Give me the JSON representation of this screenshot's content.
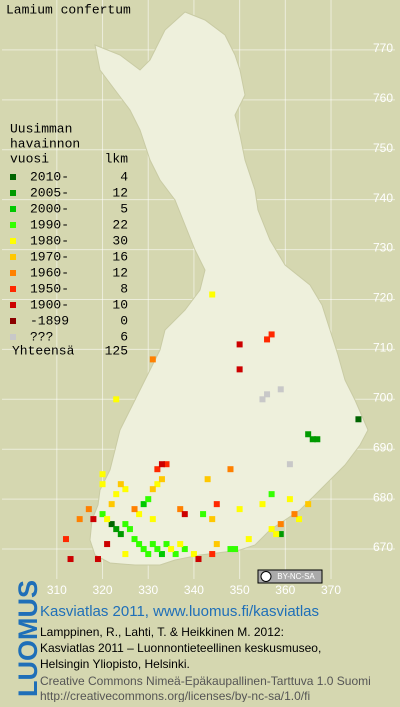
{
  "chart_data": {
    "type": "map",
    "title": "Lamium confertum",
    "xlim": [
      298,
      384
    ],
    "ylim": [
      664,
      780
    ],
    "xticks": [
      310,
      320,
      330,
      340,
      350,
      360,
      370
    ],
    "yticks": [
      670,
      680,
      690,
      700,
      710,
      720,
      730,
      740,
      750,
      760,
      770
    ],
    "grid": true,
    "legend": {
      "title_lines": [
        "Uusimman",
        "havainnon",
        "vuosi"
      ],
      "count_header": "lkm",
      "total_label": "Yhteensä",
      "total": 125
    },
    "series": [
      {
        "name": "2010-",
        "count": 4,
        "color": "#006400",
        "x": [
          376,
          322
        ],
        "y": [
          696,
          675
        ]
      },
      {
        "name": "2005-",
        "count": 12,
        "color": "#009a00",
        "x": [
          365,
          366,
          367,
          323,
          324,
          359
        ],
        "y": [
          693,
          692,
          692,
          674,
          673,
          673
        ]
      },
      {
        "name": "2000-",
        "count": 5,
        "color": "#00c800",
        "x": [
          333,
          329
        ],
        "y": [
          669,
          679
        ]
      },
      {
        "name": "1990-",
        "count": 22,
        "color": "#33ff00",
        "x": [
          327,
          328,
          329,
          330,
          331,
          332,
          334,
          336,
          338,
          348,
          349,
          320,
          325,
          326,
          330,
          342,
          357
        ],
        "y": [
          672,
          671,
          670,
          669,
          671,
          670,
          671,
          669,
          670,
          670,
          670,
          677,
          675,
          674,
          680,
          677,
          681
        ]
      },
      {
        "name": "1980-",
        "count": 30,
        "color": "#ffff00",
        "x": [
          325,
          335,
          337,
          340,
          352,
          357,
          358,
          363,
          361,
          321,
          323,
          325,
          328,
          332,
          331,
          320,
          320,
          344,
          323,
          350,
          355
        ],
        "y": [
          669,
          670,
          671,
          669,
          672,
          674,
          673,
          676,
          680,
          676,
          681,
          682,
          677,
          683,
          676,
          683,
          685,
          721,
          700,
          678,
          679
        ]
      },
      {
        "name": "1970-",
        "count": 16,
        "color": "#ffc800",
        "x": [
          345,
          365,
          322,
          324,
          331,
          333,
          344,
          343
        ],
        "y": [
          671,
          679,
          679,
          683,
          682,
          684,
          676,
          684
        ]
      },
      {
        "name": "1960-",
        "count": 12,
        "color": "#ff8000",
        "x": [
          359,
          362,
          315,
          317,
          327,
          337,
          331,
          348
        ],
        "y": [
          675,
          677,
          676,
          678,
          678,
          678,
          708,
          686
        ]
      },
      {
        "name": "1950-",
        "count": 8,
        "color": "#ff2800",
        "x": [
          312,
          344,
          332,
          345,
          356,
          357,
          334
        ],
        "y": [
          672,
          669,
          686,
          679,
          712,
          713,
          687
        ]
      },
      {
        "name": "1900-",
        "count": 10,
        "color": "#cc0000",
        "x": [
          313,
          319,
          321,
          341,
          318,
          333,
          338,
          350,
          350
        ],
        "y": [
          668,
          668,
          671,
          668,
          676,
          687,
          677,
          706,
          711
        ]
      },
      {
        "name": "-1899",
        "count": 0,
        "color": "#8b0000",
        "x": [],
        "y": []
      },
      {
        "name": "???",
        "count": 6,
        "color": "#c8c8c8",
        "x": [
          355,
          356,
          359,
          361
        ],
        "y": [
          700,
          701,
          702,
          687
        ]
      }
    ],
    "license_badge": "BY-NC-SA"
  },
  "footer": {
    "brand": "LUOMUS",
    "heading": "Kasviatlas 2011, www.luomus.fi/kasviatlas",
    "citation": [
      "Lamppinen, R., Lahti, T. & Heikkinen M. 2012:",
      "Kasviatlas 2011 – Luonnontieteellinen keskusmuseo,",
      "Helsingin Yliopisto, Helsinki."
    ],
    "license": [
      "Creative Commons Nimeä-Epäkaupallinen-Tarttuva 1.0 Suomi",
      "http://creativecommons.org/licenses/by-nc-sa/1.0/fi"
    ]
  }
}
